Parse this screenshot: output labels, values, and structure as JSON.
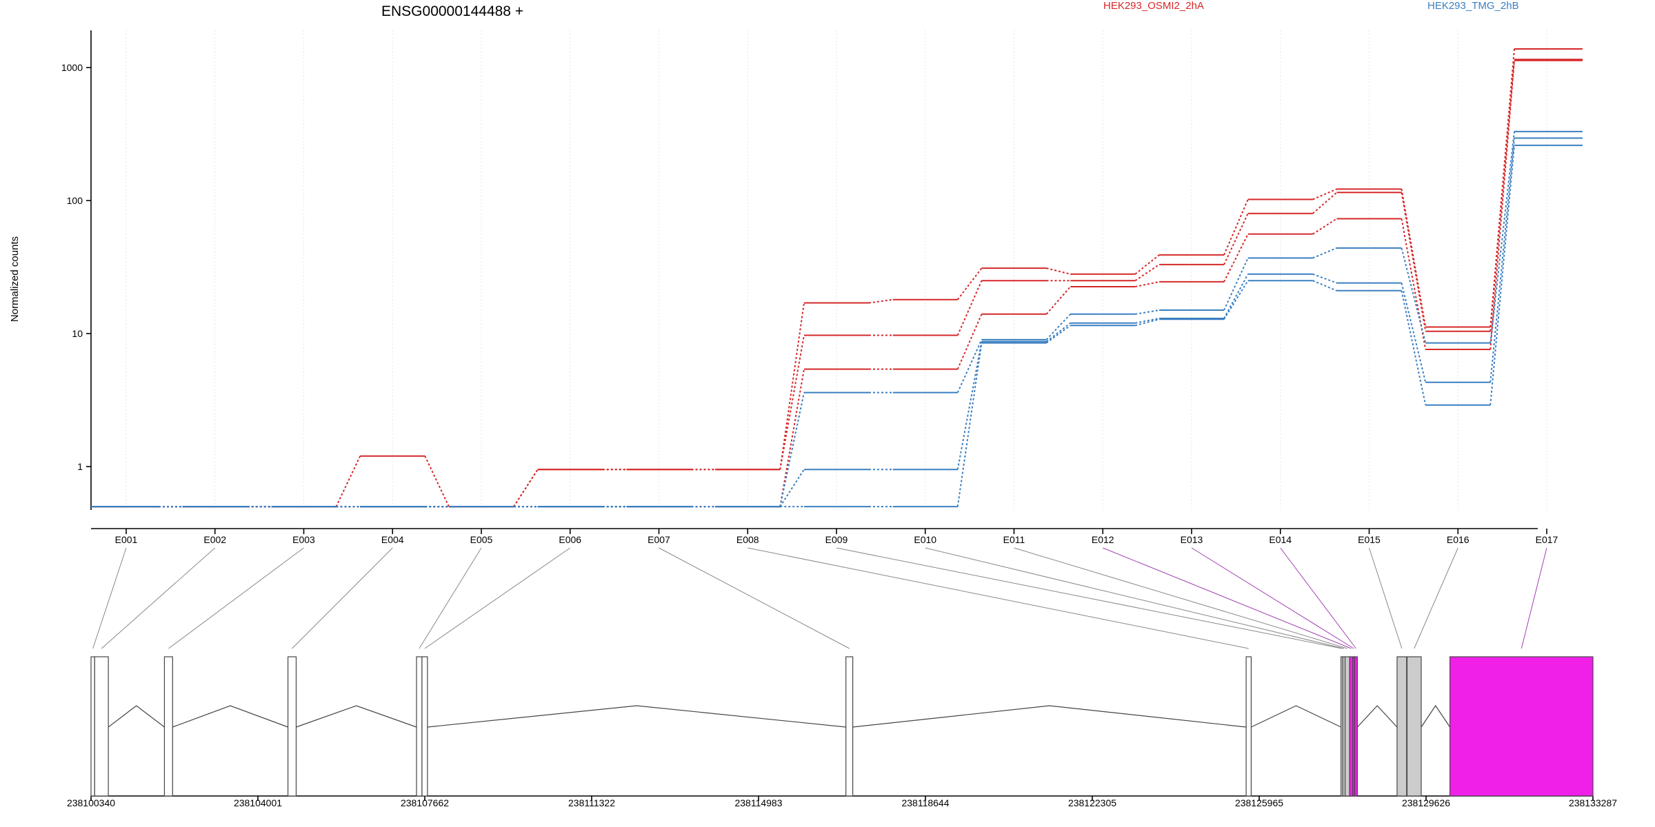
{
  "chart_data": {
    "type": "line",
    "title": "ENSG00000144488 +",
    "ylabel": "Normalized counts",
    "xlabel": "",
    "y_scale": "log",
    "y_ticks": [
      "1",
      "10",
      "100",
      "1000"
    ],
    "ylim": [
      0.5,
      1800
    ],
    "grid": "vertical dotted",
    "legend": {
      "position": "top",
      "entries": [
        {
          "name": "HEK293_OSMI2_2hA",
          "color": "#d62728"
        },
        {
          "name": "HEK293_TMG_2hB",
          "color": "#3a7fc1"
        }
      ]
    },
    "categories": [
      "E001",
      "E002",
      "E003",
      "E004",
      "E005",
      "E006",
      "E007",
      "E008",
      "E009",
      "E010",
      "E011",
      "E012",
      "E013",
      "E014",
      "E015",
      "E016",
      "E017"
    ],
    "series": [
      {
        "group": "HEK293_OSMI2_2hA",
        "color": "#d62728",
        "values": [
          0.5,
          0.5,
          0.5,
          1.2,
          0.5,
          0.95,
          0.95,
          0.95,
          17,
          18,
          31,
          28,
          39,
          102,
          122,
          11.2,
          1380
        ]
      },
      {
        "group": "HEK293_OSMI2_2hA",
        "color": "#d62728",
        "values": [
          0.5,
          0.5,
          0.5,
          0.5,
          0.5,
          0.95,
          0.95,
          0.95,
          9.7,
          9.7,
          25,
          25,
          33,
          80,
          115,
          10.4,
          1150
        ]
      },
      {
        "group": "HEK293_OSMI2_2hA",
        "color": "#d62728",
        "values": [
          0.5,
          0.5,
          0.5,
          0.5,
          0.5,
          0.5,
          0.5,
          0.5,
          5.4,
          5.4,
          14,
          22.5,
          24.5,
          56,
          73,
          7.6,
          1130
        ]
      },
      {
        "group": "HEK293_TMG_2hB",
        "color": "#3a7fc1",
        "values": [
          0.5,
          0.5,
          0.5,
          0.5,
          0.5,
          0.5,
          0.5,
          0.5,
          3.6,
          3.6,
          9,
          14,
          15,
          37,
          44,
          8.5,
          330
        ]
      },
      {
        "group": "HEK293_TMG_2hB",
        "color": "#3a7fc1",
        "values": [
          0.5,
          0.5,
          0.5,
          0.5,
          0.5,
          0.5,
          0.5,
          0.5,
          0.95,
          0.95,
          8.7,
          12,
          13,
          28,
          24,
          4.3,
          295
        ]
      },
      {
        "group": "HEK293_TMG_2hB",
        "color": "#3a7fc1",
        "values": [
          0.5,
          0.5,
          0.5,
          0.5,
          0.5,
          0.5,
          0.5,
          0.5,
          0.5,
          0.5,
          8.5,
          11.5,
          12.8,
          25,
          21,
          2.9,
          260
        ]
      }
    ],
    "genome_ticks": [
      "238100340",
      "238104001",
      "238107662",
      "238111322",
      "238114983",
      "238118644",
      "238122305",
      "238125965",
      "238129626",
      "238133287"
    ],
    "genome_range": [
      238100340,
      238133287
    ],
    "exons": [
      {
        "start": 238100340,
        "end": 238100420,
        "fill": "none",
        "link": "#888888"
      },
      {
        "start": 238100420,
        "end": 238100720,
        "fill": "none",
        "link": "#888888"
      },
      {
        "start": 238101950,
        "end": 238102130,
        "fill": "none",
        "link": "#888888"
      },
      {
        "start": 238104660,
        "end": 238104840,
        "fill": "none",
        "link": "#888888"
      },
      {
        "start": 238107480,
        "end": 238107600,
        "fill": "none",
        "link": "#888888"
      },
      {
        "start": 238107600,
        "end": 238107720,
        "fill": "none",
        "link": "#888888"
      },
      {
        "start": 238116900,
        "end": 238117050,
        "fill": "none",
        "link": "#888888"
      },
      {
        "start": 238125680,
        "end": 238125790,
        "fill": "none",
        "link": "#888888"
      },
      {
        "start": 238127760,
        "end": 238127800,
        "fill": "#dddddd",
        "link": "#888888"
      },
      {
        "start": 238127800,
        "end": 238127850,
        "fill": "#cccccc",
        "link": "#888888"
      },
      {
        "start": 238127850,
        "end": 238127950,
        "fill": "#cccccc",
        "link": "#888888"
      },
      {
        "start": 238127950,
        "end": 238128020,
        "fill": "#f020e8",
        "link": "#a040b0"
      },
      {
        "start": 238128020,
        "end": 238128060,
        "fill": "#f020e8",
        "link": "#a040b0"
      },
      {
        "start": 238128060,
        "end": 238128120,
        "fill": "#f020e8",
        "link": "#a040b0"
      },
      {
        "start": 238128990,
        "end": 238129200,
        "fill": "#cccccc",
        "link": "#888888"
      },
      {
        "start": 238129210,
        "end": 238129520,
        "fill": "#cccccc",
        "link": "#888888"
      },
      {
        "start": 238130150,
        "end": 238133287,
        "fill": "#f020e8",
        "link": "#a040b0"
      }
    ]
  }
}
